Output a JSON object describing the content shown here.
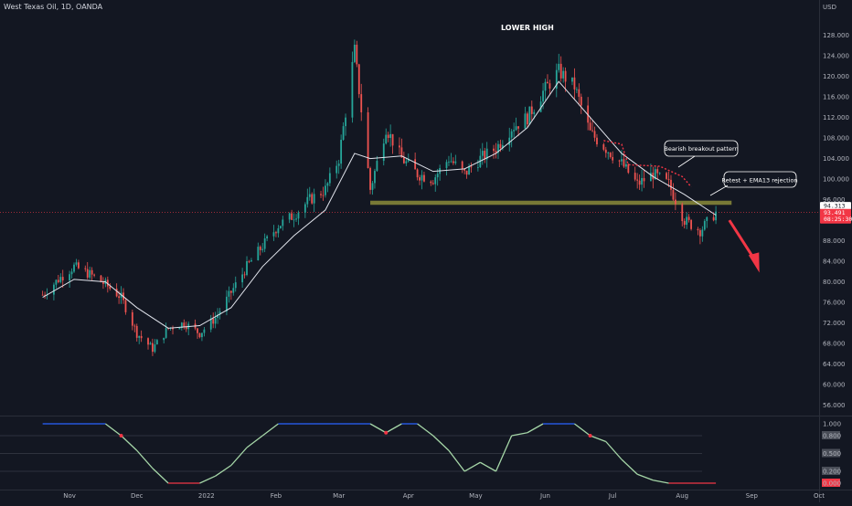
{
  "header": {
    "symbol": "West Texas Oil, 1D, OANDA"
  },
  "currency": "USD",
  "chart_data": {
    "type": "candlestick",
    "title": "West Texas Oil, 1D, OANDA",
    "currency_label": "USD",
    "x_ticks": [
      "Nov",
      "Dec",
      "2022",
      "Feb",
      "Mar",
      "Apr",
      "May",
      "Jun",
      "Jul",
      "Aug",
      "Sep",
      "Oct"
    ],
    "y_ticks": [
      "56.000",
      "60.000",
      "64.000",
      "68.000",
      "72.000",
      "76.000",
      "80.000",
      "84.000",
      "88.000",
      "92.000",
      "96.000",
      "100.000",
      "104.000",
      "108.000",
      "112.000",
      "116.000",
      "120.000",
      "124.000",
      "128.000"
    ],
    "ylim": [
      54,
      132
    ],
    "price_series": [
      [
        "2021-10-20",
        77.5
      ],
      [
        "2021-10-27",
        80.5
      ],
      [
        "2021-11-03",
        83.0
      ],
      [
        "2021-11-10",
        81.5
      ],
      [
        "2021-11-17",
        79.5
      ],
      [
        "2021-11-24",
        77.0
      ],
      [
        "2021-12-01",
        70.0
      ],
      [
        "2021-12-08",
        67.0
      ],
      [
        "2021-12-15",
        71.0
      ],
      [
        "2021-12-22",
        72.0
      ],
      [
        "2021-12-29",
        70.0
      ],
      [
        "2022-01-05",
        73.0
      ],
      [
        "2022-01-12",
        78.0
      ],
      [
        "2022-01-19",
        83.0
      ],
      [
        "2022-01-26",
        87.0
      ],
      [
        "2022-02-02",
        91.0
      ],
      [
        "2022-02-09",
        93.0
      ],
      [
        "2022-02-16",
        96.0
      ],
      [
        "2022-02-23",
        98.0
      ],
      [
        "2022-03-01",
        104.0
      ],
      [
        "2022-03-08",
        125.0
      ],
      [
        "2022-03-15",
        98.0
      ],
      [
        "2022-03-22",
        110.0
      ],
      [
        "2022-03-29",
        104.0
      ],
      [
        "2022-04-05",
        101.0
      ],
      [
        "2022-04-12",
        100.0
      ],
      [
        "2022-04-19",
        104.0
      ],
      [
        "2022-04-26",
        101.0
      ],
      [
        "2022-05-03",
        104.0
      ],
      [
        "2022-05-10",
        106.0
      ],
      [
        "2022-05-17",
        110.0
      ],
      [
        "2022-05-24",
        112.0
      ],
      [
        "2022-05-31",
        117.0
      ],
      [
        "2022-06-07",
        121.0
      ],
      [
        "2022-06-14",
        118.0
      ],
      [
        "2022-06-21",
        109.0
      ],
      [
        "2022-06-28",
        106.0
      ],
      [
        "2022-07-05",
        103.0
      ],
      [
        "2022-07-12",
        99.0
      ],
      [
        "2022-07-19",
        101.0
      ],
      [
        "2022-07-26",
        99.0
      ],
      [
        "2022-08-02",
        92.0
      ],
      [
        "2022-08-09",
        90.0
      ],
      [
        "2022-08-16",
        93.5
      ]
    ],
    "ema13": [
      [
        "2021-10-20",
        77.0
      ],
      [
        "2021-11-03",
        80.5
      ],
      [
        "2021-11-17",
        80.0
      ],
      [
        "2021-12-01",
        75.0
      ],
      [
        "2021-12-15",
        71.0
      ],
      [
        "2021-12-29",
        71.5
      ],
      [
        "2022-01-12",
        75.0
      ],
      [
        "2022-01-26",
        83.0
      ],
      [
        "2022-02-09",
        89.0
      ],
      [
        "2022-02-23",
        94.0
      ],
      [
        "2022-03-08",
        105.0
      ],
      [
        "2022-03-15",
        104.0
      ],
      [
        "2022-03-29",
        104.5
      ],
      [
        "2022-04-12",
        101.5
      ],
      [
        "2022-04-26",
        102.0
      ],
      [
        "2022-05-10",
        105.0
      ],
      [
        "2022-05-24",
        110.0
      ],
      [
        "2022-06-07",
        119.0
      ],
      [
        "2022-06-21",
        112.0
      ],
      [
        "2022-07-05",
        105.0
      ],
      [
        "2022-07-19",
        100.5
      ],
      [
        "2022-08-02",
        97.0
      ],
      [
        "2022-08-16",
        93.0
      ]
    ],
    "support_zone": {
      "low": 95.0,
      "high": 95.8,
      "label": ""
    },
    "current_price_line": 93.491,
    "price_labels": [
      {
        "value": 94.313,
        "text": "94.313",
        "color": "#ffffff",
        "text_color": "#131722"
      },
      {
        "value": 93.491,
        "text": "93.491",
        "sub": "08:25:30",
        "color": "#f23645",
        "text_color": "#ffffff"
      }
    ],
    "annotations": {
      "lower_high": "LOWER HIGH",
      "bearish": "Bearish breakout pattern",
      "retest": "Retest + EMA13 rejection"
    },
    "oscillator": {
      "y_ticks": [
        "1.000",
        "0.800",
        "0.500",
        "0.200",
        "0.000"
      ],
      "levels": [
        0.8,
        0.5,
        0.2
      ],
      "values": [
        [
          "2021-10-20",
          1.0
        ],
        [
          "2021-11-17",
          1.0
        ],
        [
          "2021-11-24",
          0.8
        ],
        [
          "2021-12-01",
          0.55
        ],
        [
          "2021-12-08",
          0.25
        ],
        [
          "2021-12-15",
          0.0
        ],
        [
          "2021-12-29",
          0.0
        ],
        [
          "2022-01-05",
          0.12
        ],
        [
          "2022-01-12",
          0.3
        ],
        [
          "2022-01-19",
          0.6
        ],
        [
          "2022-01-26",
          0.8
        ],
        [
          "2022-02-02",
          1.0
        ],
        [
          "2022-03-15",
          1.0
        ],
        [
          "2022-03-22",
          0.85
        ],
        [
          "2022-03-29",
          1.0
        ],
        [
          "2022-04-05",
          1.0
        ],
        [
          "2022-04-12",
          0.8
        ],
        [
          "2022-04-19",
          0.55
        ],
        [
          "2022-04-26",
          0.2
        ],
        [
          "2022-05-03",
          0.35
        ],
        [
          "2022-05-10",
          0.2
        ],
        [
          "2022-05-17",
          0.8
        ],
        [
          "2022-05-24",
          0.85
        ],
        [
          "2022-05-31",
          1.0
        ],
        [
          "2022-06-14",
          1.0
        ],
        [
          "2022-06-21",
          0.8
        ],
        [
          "2022-06-28",
          0.7
        ],
        [
          "2022-07-05",
          0.4
        ],
        [
          "2022-07-12",
          0.15
        ],
        [
          "2022-07-19",
          0.05
        ],
        [
          "2022-07-26",
          0.0
        ],
        [
          "2022-08-16",
          0.0
        ]
      ],
      "colors": {
        "high": "#2962ff",
        "mid": "#a5d6a7",
        "low": "#f23645"
      },
      "value_label_colors": [
        "#131722",
        "#4a4e58",
        "#4a4e58",
        "#4a4e58",
        "#f23645"
      ]
    }
  }
}
